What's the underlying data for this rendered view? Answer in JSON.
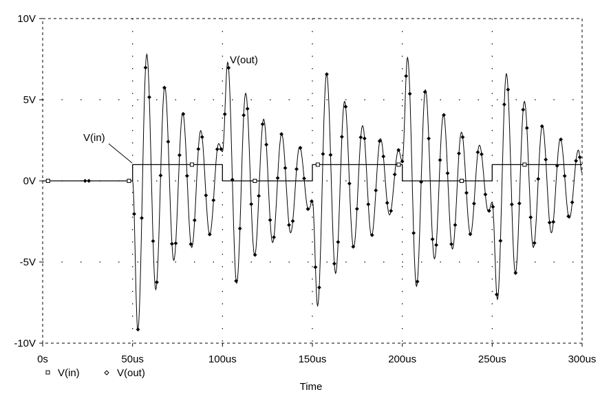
{
  "chart_data": {
    "type": "line",
    "xlabel": "Time",
    "ylabel": "",
    "xlim": [
      0,
      300
    ],
    "ylim": [
      -10,
      10
    ],
    "x_unit": "us",
    "x_ticks": [
      0,
      50,
      100,
      150,
      200,
      250,
      300
    ],
    "x_tick_labels": [
      "0s",
      "50us",
      "100us",
      "150us",
      "200us",
      "250us",
      "300us"
    ],
    "y_ticks": [
      -10,
      -5,
      0,
      5,
      10
    ],
    "y_tick_labels": [
      "-10V",
      "-5V",
      "0V",
      "5V",
      "10V"
    ],
    "grid": true,
    "legend_position": "bottom-left",
    "annotations": [
      "V(in)",
      "V(out)"
    ],
    "series": [
      {
        "name": "V(in)",
        "marker": "square",
        "x": [
          0,
          50,
          50,
          100,
          100,
          150,
          150,
          200,
          200,
          250,
          250,
          300
        ],
        "values": [
          0,
          0,
          1,
          1,
          0,
          0,
          1,
          1,
          0,
          0,
          1,
          1
        ]
      },
      {
        "name": "V(out)",
        "marker": "diamond",
        "x": [
          0,
          50,
          52.9,
          57.9,
          62.9,
          67.9,
          72.9,
          77.9,
          82.9,
          87.9,
          92.9,
          97.9,
          100,
          102.9,
          107.9,
          112.9,
          117.9,
          122.9,
          127.9,
          132.9,
          137.9,
          142.9,
          147.9,
          150,
          152.9,
          157.9,
          162.9,
          167.9,
          172.9,
          177.9,
          182.9,
          187.9,
          192.9,
          197.9,
          200,
          202.9,
          207.9,
          212.9,
          217.9,
          222.9,
          227.9,
          232.9,
          237.9,
          242.9,
          247.9,
          250,
          252.9,
          257.9,
          262.9,
          267.9,
          272.9,
          277.9,
          282.9,
          287.9,
          292.9,
          297.9,
          300
        ],
        "values": [
          0,
          0,
          -9.2,
          7.8,
          -6.7,
          5.8,
          -4.9,
          4.2,
          -4.1,
          3.1,
          -3.3,
          2.3,
          1.8,
          7.3,
          -6.3,
          5.4,
          -4.6,
          3.8,
          -3.8,
          2.9,
          -3.2,
          2.1,
          -1.8,
          -1.2,
          -7.7,
          6.6,
          -5.7,
          4.9,
          -4.1,
          3.4,
          -3.4,
          2.6,
          -2.1,
          1.9,
          1.2,
          7.6,
          -6.5,
          5.6,
          -4.8,
          4.1,
          -4.2,
          3.0,
          -3.3,
          2.2,
          -1.9,
          -1.3,
          -7.3,
          6.6,
          -5.7,
          4.9,
          -4.1,
          3.4,
          -3.2,
          2.6,
          -2.3,
          1.9,
          0.5
        ]
      }
    ]
  }
}
